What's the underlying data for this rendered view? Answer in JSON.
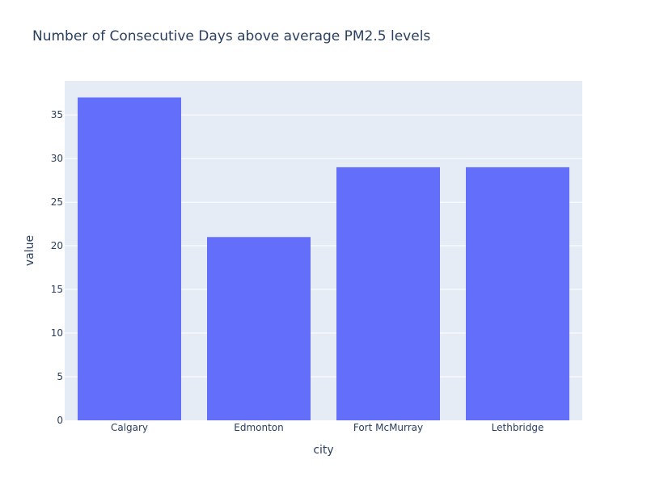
{
  "chart_data": {
    "type": "bar",
    "title": "Number of Consecutive Days above average PM2.5 levels",
    "xlabel": "city",
    "ylabel": "value",
    "categories": [
      "Calgary",
      "Edmonton",
      "Fort McMurray",
      "Lethbridge"
    ],
    "values": [
      37,
      21,
      29,
      29
    ],
    "ylim": [
      0,
      38.9
    ],
    "yticks": [
      0,
      5,
      10,
      15,
      20,
      25,
      30,
      35
    ],
    "grid": true,
    "legend": "none",
    "colors": {
      "bar": "#636efa",
      "plot_background": "#e5ecf6",
      "gridline": "#ffffff",
      "text": "#2a3f5f"
    }
  }
}
